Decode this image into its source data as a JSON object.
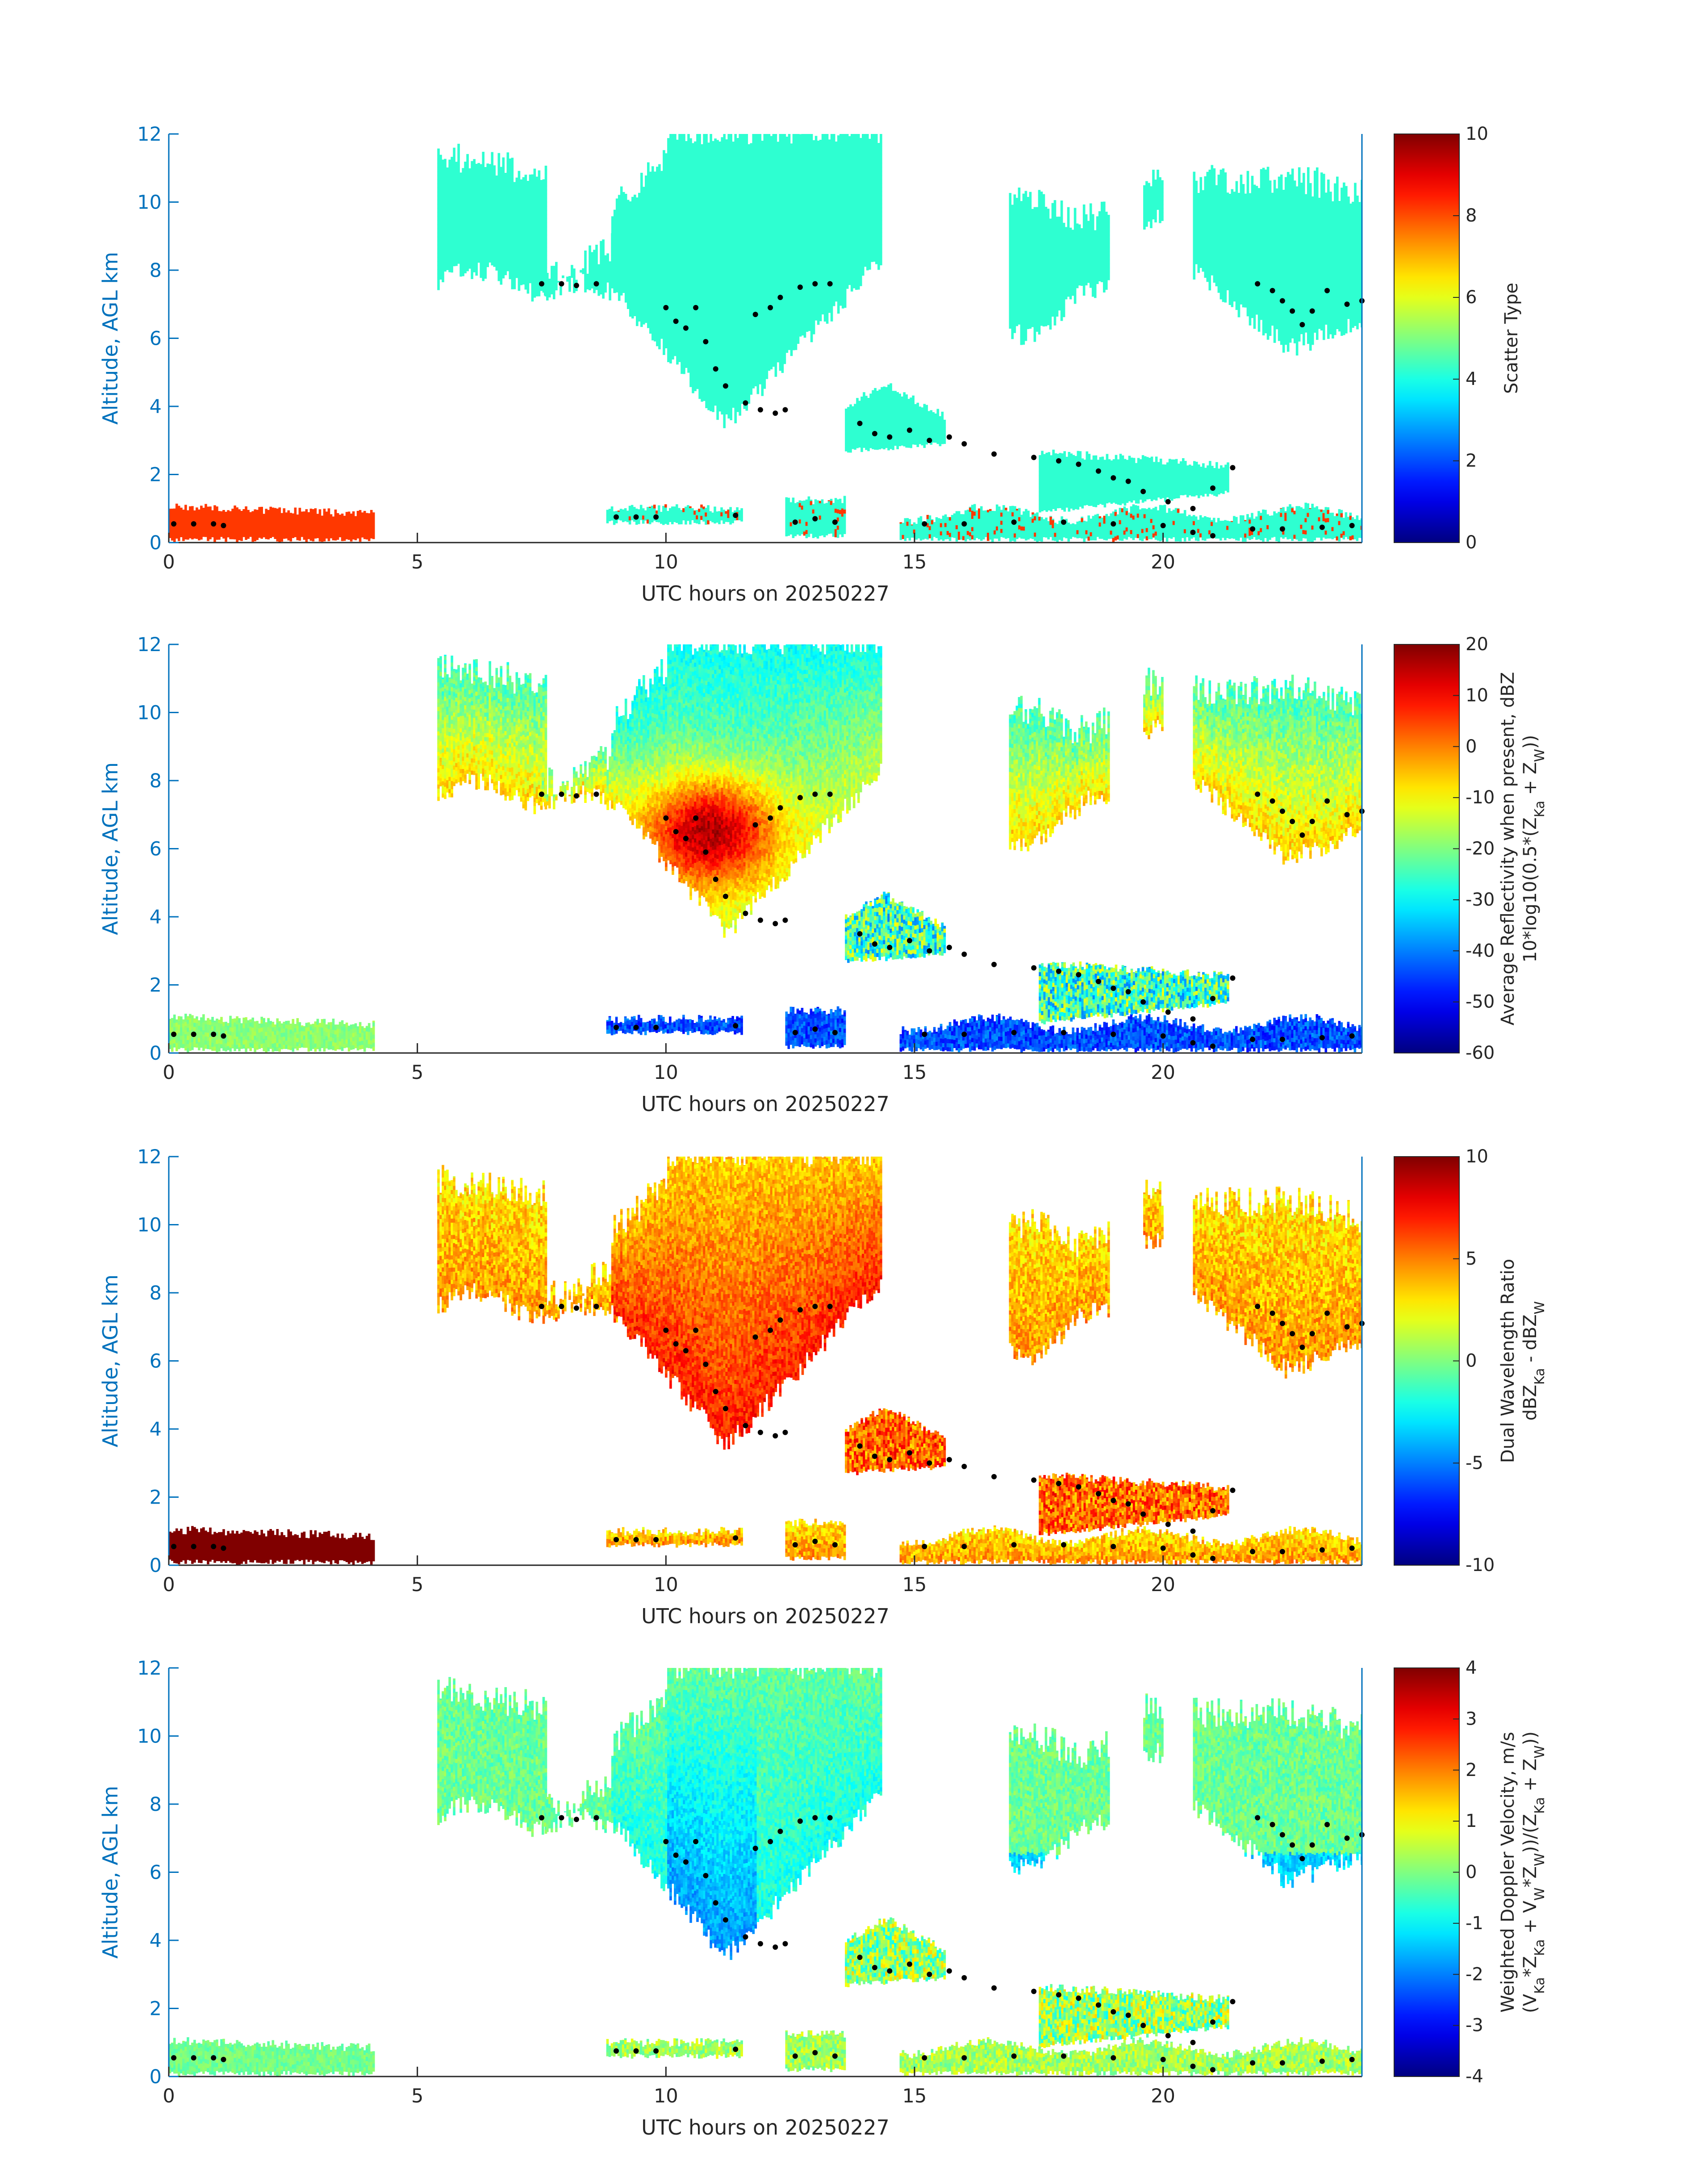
{
  "chart_data": [
    {
      "type": "heatmap",
      "panel": "scatter-type",
      "xlabel": "UTC hours on 20250227",
      "ylabel": "Altitude, AGL km",
      "xlim": [
        0,
        24
      ],
      "ylim": [
        0,
        12
      ],
      "x_ticks": [
        "0",
        "5",
        "10",
        "15",
        "20"
      ],
      "y_ticks": [
        "0",
        "2",
        "4",
        "6",
        "8",
        "10",
        "12"
      ],
      "colorbar": {
        "label": [
          "Scatter Type"
        ],
        "range": [
          0,
          10
        ],
        "ticks": [
          "0",
          "2",
          "4",
          "6",
          "8",
          "10"
        ],
        "colormap": "jet"
      },
      "dominant_value_upper_cloud": 4.2,
      "dominant_value_low_layer_0_4h": 8.2
    },
    {
      "type": "heatmap",
      "panel": "average-reflectivity",
      "xlabel": "UTC hours on 20250227",
      "ylabel": "Altitude, AGL km",
      "xlim": [
        0,
        24
      ],
      "ylim": [
        0,
        12
      ],
      "x_ticks": [
        "0",
        "5",
        "10",
        "15",
        "20"
      ],
      "y_ticks": [
        "0",
        "2",
        "4",
        "6",
        "8",
        "10",
        "12"
      ],
      "colorbar": {
        "label": [
          "Average Reflectivity when present, dBZ",
          "10*log10(0.5*(Z",
          "Ka",
          " + Z",
          "W",
          "))"
        ],
        "range": [
          -60,
          20
        ],
        "ticks": [
          "-60",
          "-50",
          "-40",
          "-30",
          "-20",
          "-10",
          "0",
          "10",
          "20"
        ],
        "colormap": "jet"
      },
      "max_value_core": 12
    },
    {
      "type": "heatmap",
      "panel": "dual-wavelength-ratio",
      "xlabel": "UTC hours on 20250227",
      "ylabel": "Altitude, AGL km",
      "xlim": [
        0,
        24
      ],
      "ylim": [
        0,
        12
      ],
      "x_ticks": [
        "0",
        "5",
        "10",
        "15",
        "20"
      ],
      "y_ticks": [
        "0",
        "2",
        "4",
        "6",
        "8",
        "10",
        "12"
      ],
      "colorbar": {
        "label": [
          "Dual Wavelength Ratio",
          "dBZ",
          "Ka",
          " - dBZ",
          "W"
        ],
        "range": [
          -10,
          10
        ],
        "ticks": [
          "-10",
          "-5",
          "0",
          "5",
          "10"
        ],
        "colormap": "jet"
      },
      "low_layer_value_0_4h": 10
    },
    {
      "type": "heatmap",
      "panel": "weighted-doppler-velocity",
      "xlabel": "UTC hours on 20250227",
      "ylabel": "Altitude, AGL km",
      "xlim": [
        0,
        24
      ],
      "ylim": [
        0,
        12
      ],
      "x_ticks": [
        "0",
        "5",
        "10",
        "15",
        "20"
      ],
      "y_ticks": [
        "0",
        "2",
        "4",
        "6",
        "8",
        "10",
        "12"
      ],
      "colorbar": {
        "label": [
          "Weighted Doppler Velocity, m/s",
          "(V",
          "Ka",
          "*Z",
          "Ka",
          " + V",
          "W",
          "*Z",
          "W",
          "))/(Z",
          "Ka",
          " + Z",
          "W",
          "))"
        ],
        "range": [
          -4,
          4
        ],
        "ticks": [
          "-4",
          "-3",
          "-2",
          "-1",
          "0",
          "1",
          "2",
          "3",
          "4"
        ],
        "colormap": "jet"
      },
      "typical_value": -0.5
    }
  ],
  "cloud_boundary_points": [
    [
      0.1,
      0.55
    ],
    [
      0.5,
      0.55
    ],
    [
      0.9,
      0.55
    ],
    [
      1.1,
      0.5
    ],
    [
      7.5,
      7.6
    ],
    [
      7.9,
      7.6
    ],
    [
      8.2,
      7.55
    ],
    [
      8.6,
      7.6
    ],
    [
      9.0,
      0.75
    ],
    [
      9.4,
      0.75
    ],
    [
      9.8,
      0.75
    ],
    [
      10.0,
      6.9
    ],
    [
      10.2,
      6.5
    ],
    [
      10.4,
      6.3
    ],
    [
      10.6,
      6.9
    ],
    [
      10.8,
      5.9
    ],
    [
      11.0,
      5.1
    ],
    [
      11.2,
      4.6
    ],
    [
      11.4,
      0.8
    ],
    [
      11.6,
      4.1
    ],
    [
      11.9,
      3.9
    ],
    [
      12.2,
      3.8
    ],
    [
      12.4,
      3.9
    ],
    [
      11.8,
      6.7
    ],
    [
      12.1,
      6.9
    ],
    [
      12.3,
      7.2
    ],
    [
      12.7,
      7.5
    ],
    [
      13.0,
      7.6
    ],
    [
      13.3,
      7.6
    ],
    [
      12.6,
      0.6
    ],
    [
      13.0,
      0.7
    ],
    [
      13.4,
      0.6
    ],
    [
      13.9,
      3.5
    ],
    [
      14.2,
      3.2
    ],
    [
      14.5,
      3.1
    ],
    [
      14.9,
      3.3
    ],
    [
      15.3,
      3.0
    ],
    [
      15.7,
      3.1
    ],
    [
      16.0,
      2.9
    ],
    [
      16.6,
      2.6
    ],
    [
      17.4,
      2.5
    ],
    [
      17.9,
      2.4
    ],
    [
      18.3,
      2.3
    ],
    [
      18.7,
      2.1
    ],
    [
      19.0,
      1.9
    ],
    [
      19.3,
      1.8
    ],
    [
      19.6,
      1.5
    ],
    [
      20.1,
      1.2
    ],
    [
      20.6,
      1.0
    ],
    [
      21.0,
      1.6
    ],
    [
      21.4,
      2.2
    ],
    [
      15.2,
      0.55
    ],
    [
      16.0,
      0.55
    ],
    [
      17.0,
      0.6
    ],
    [
      18.0,
      0.6
    ],
    [
      19.0,
      0.55
    ],
    [
      20.0,
      0.5
    ],
    [
      20.6,
      0.3
    ],
    [
      21.0,
      0.2
    ],
    [
      21.8,
      0.4
    ],
    [
      22.4,
      0.4
    ],
    [
      23.2,
      0.45
    ],
    [
      23.8,
      0.5
    ],
    [
      21.9,
      7.6
    ],
    [
      22.2,
      7.4
    ],
    [
      22.4,
      7.1
    ],
    [
      22.6,
      6.8
    ],
    [
      22.8,
      6.4
    ],
    [
      23.0,
      6.8
    ],
    [
      23.3,
      7.4
    ],
    [
      23.7,
      7.0
    ],
    [
      24.0,
      7.1
    ]
  ]
}
